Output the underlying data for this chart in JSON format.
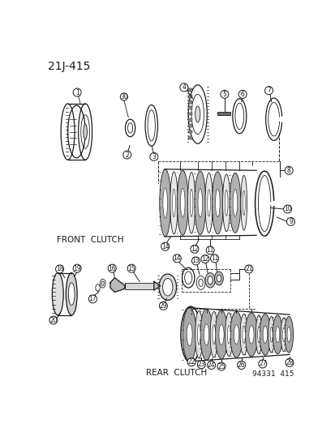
{
  "title": "21J-415",
  "background_color": "#ffffff",
  "line_color": "#1a1a1a",
  "label_front_clutch": "FRONT  CLUTCH",
  "label_rear_clutch": "REAR  CLUTCH",
  "label_ref": "94331  415",
  "fig_width": 4.14,
  "fig_height": 5.33,
  "dpi": 100
}
